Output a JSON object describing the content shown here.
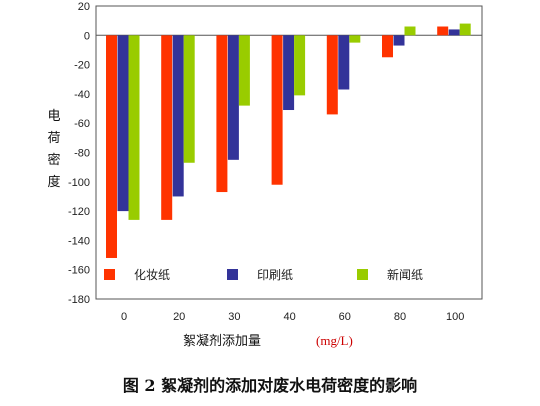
{
  "caption": "图 2  絮凝剂的添加对废水电荷密度的影响",
  "chart_data": {
    "type": "bar",
    "categories": [
      "0",
      "20",
      "30",
      "40",
      "60",
      "80",
      "100"
    ],
    "series": [
      {
        "name": "化妆纸",
        "color": "#ff3300",
        "values": [
          -152,
          -126,
          -107,
          -102,
          -54,
          -15,
          6
        ]
      },
      {
        "name": "印刷纸",
        "color": "#333399",
        "values": [
          -120,
          -110,
          -85,
          -51,
          -37,
          -7,
          4
        ]
      },
      {
        "name": "新闻纸",
        "color": "#99cc00",
        "values": [
          -126,
          -87,
          -48,
          -41,
          -5,
          6,
          8
        ]
      }
    ],
    "ylabel": "电荷密度",
    "xlabel": "絮凝剂添加量",
    "xunit": "(mg/L)",
    "ylim": [
      -180,
      20
    ],
    "yticks": [
      20,
      0,
      -20,
      -40,
      -60,
      -80,
      -100,
      -120,
      -140,
      -160,
      -180
    ],
    "legend_position": "bottom-inside",
    "grid": false
  }
}
